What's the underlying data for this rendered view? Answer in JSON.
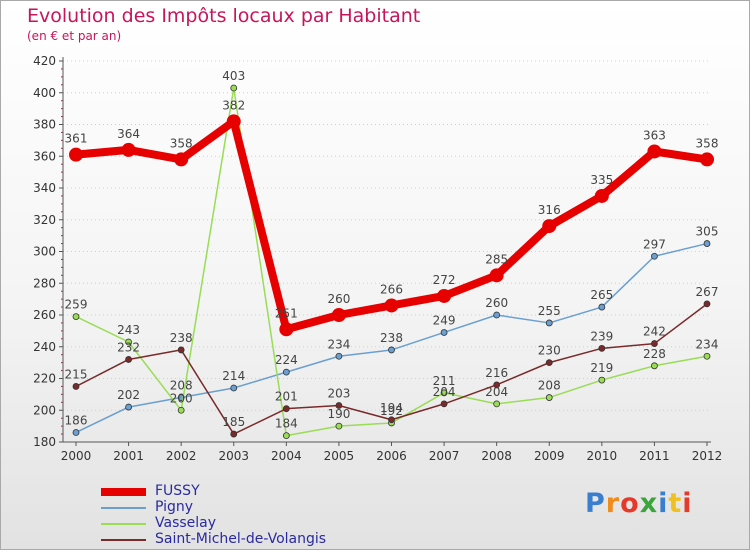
{
  "title": "Evolution des Impôts locaux par Habitant",
  "subtitle": "(en € et par an)",
  "brand": "Proxiti",
  "brand_colors": [
    "#3a7fcf",
    "#f08c1a",
    "#e53a2a",
    "#3aa53a",
    "#3a7fcf",
    "#f0c020",
    "#e53a2a"
  ],
  "chart_data": {
    "type": "line",
    "x": [
      "2000",
      "2001",
      "2002",
      "2003",
      "2004",
      "2005",
      "2006",
      "2007",
      "2008",
      "2009",
      "2010",
      "2011",
      "2012"
    ],
    "ylim": [
      180,
      420
    ],
    "yticks": [
      180,
      200,
      220,
      240,
      260,
      280,
      300,
      320,
      340,
      360,
      380,
      400,
      420
    ],
    "grid": "horizontal-dotted",
    "legend_position": "bottom-left",
    "series": [
      {
        "name": "FUSSY",
        "color": "#e60000",
        "emphasis": true,
        "values": [
          361,
          364,
          358,
          382,
          251,
          260,
          266,
          272,
          285,
          316,
          335,
          363,
          358
        ]
      },
      {
        "name": "Pigny",
        "color": "#6a9fd0",
        "values": [
          186,
          202,
          208,
          214,
          224,
          234,
          238,
          249,
          260,
          255,
          265,
          297,
          305
        ]
      },
      {
        "name": "Vasselay",
        "color": "#99dd55",
        "values": [
          259,
          243,
          200,
          403,
          184,
          190,
          192,
          211,
          204,
          208,
          219,
          228,
          234
        ]
      },
      {
        "name": "Saint-Michel-de-Volangis",
        "color": "#7a2a2a",
        "values": [
          215,
          232,
          238,
          185,
          201,
          203,
          194,
          204,
          216,
          230,
          239,
          242,
          267
        ]
      }
    ]
  }
}
